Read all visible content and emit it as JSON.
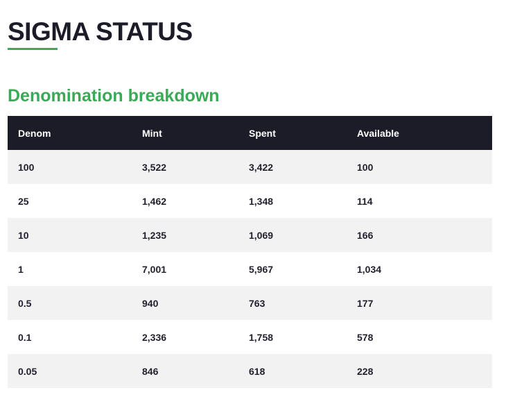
{
  "page": {
    "title": "SIGMA STATUS",
    "section_heading": "Denomination breakdown"
  },
  "colors": {
    "accent": "#3aaa56",
    "header_bg": "#1c1c28",
    "row_alt_bg": "#f2f2f2"
  },
  "table": {
    "headers": {
      "denom": "Denom",
      "mint": "Mint",
      "spent": "Spent",
      "available": "Available"
    },
    "rows": [
      {
        "denom": "100",
        "mint": "3,522",
        "spent": "3,422",
        "available": "100"
      },
      {
        "denom": "25",
        "mint": "1,462",
        "spent": "1,348",
        "available": "114"
      },
      {
        "denom": "10",
        "mint": "1,235",
        "spent": "1,069",
        "available": "166"
      },
      {
        "denom": "1",
        "mint": "7,001",
        "spent": "5,967",
        "available": "1,034"
      },
      {
        "denom": "0.5",
        "mint": "940",
        "spent": "763",
        "available": "177"
      },
      {
        "denom": "0.1",
        "mint": "2,336",
        "spent": "1,758",
        "available": "578"
      },
      {
        "denom": "0.05",
        "mint": "846",
        "spent": "618",
        "available": "228"
      }
    ]
  }
}
